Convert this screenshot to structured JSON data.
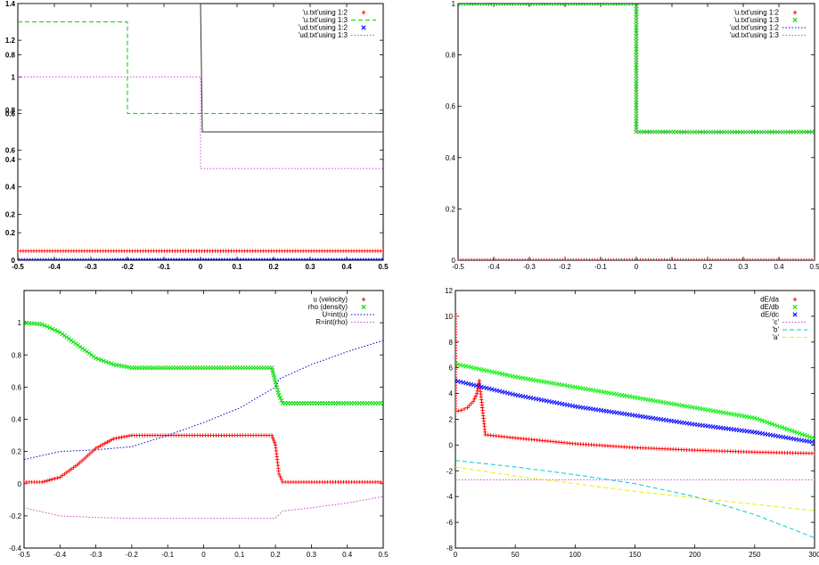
{
  "chart_data": [
    {
      "type": "line",
      "panel": "top-left",
      "xlim": [
        -0.5,
        0.5
      ],
      "ylim": [
        0,
        1.4
      ],
      "x_ticks": [
        "-0.5",
        "-0.4",
        "-0.3",
        "-0.2",
        "-0.1",
        "0",
        "0.1",
        "0.2",
        "0.3",
        "0.4",
        "0.5"
      ],
      "y_tick_labels": [
        {
          "v": 0,
          "t": "0"
        },
        {
          "v": 0.15,
          "t": "0.2"
        },
        {
          "v": 0.25,
          "t": "0.2"
        },
        {
          "v": 0.4,
          "t": "0.4"
        },
        {
          "v": 0.55,
          "t": "0.4"
        },
        {
          "v": 0.6,
          "t": "0.6"
        },
        {
          "v": 0.8,
          "t": "0.6"
        },
        {
          "v": 0.82,
          "t": "0.8"
        },
        {
          "v": 1.0,
          "t": "1"
        },
        {
          "v": 1.12,
          "t": "0.8"
        },
        {
          "v": 1.2,
          "t": "1.2"
        },
        {
          "v": 1.4,
          "t": "1.4"
        }
      ],
      "legend_position": "top-right",
      "series": [
        {
          "name": "'u.txt'using 1:2",
          "color": "#ff0000",
          "style": "points",
          "x": [
            -0.5,
            0.5
          ],
          "y": [
            0.05,
            0.05
          ]
        },
        {
          "name": "'u.txt'using 1:3",
          "color": "#00cc00",
          "style": "dashed",
          "x": [
            -0.5,
            -0.2,
            -0.2,
            0,
            0,
            0.5
          ],
          "y": [
            1.3,
            1.3,
            0.8,
            0.8,
            0.8,
            0.8
          ]
        },
        {
          "name": "'ud.txt'using 1:2",
          "color": "#0000ff",
          "style": "points",
          "x": [
            -0.5,
            0.5
          ],
          "y": [
            0.0,
            0.0
          ]
        },
        {
          "name": "'ud.txt'using 1:3",
          "color": "#cc44cc",
          "style": "dotted",
          "x": [
            -0.5,
            0,
            0,
            0.5
          ],
          "y": [
            1.0,
            1.0,
            0.5,
            0.5
          ]
        },
        {
          "name": "",
          "color": "#333333",
          "style": "line",
          "x": [
            -0.5,
            0,
            0.005,
            0.5
          ],
          "y": [
            1.4,
            1.4,
            0.7,
            0.7
          ]
        }
      ]
    },
    {
      "type": "line",
      "panel": "top-right",
      "xlim": [
        -0.5,
        0.5
      ],
      "ylim": [
        0,
        1
      ],
      "x_ticks": [
        "-0.5",
        "-0.4",
        "-0.3",
        "-0.2",
        "-0.1",
        "0",
        "0.1",
        "0.2",
        "0.3",
        "0.4",
        "0.5"
      ],
      "y_ticks": [
        "0",
        "0.2",
        "0.4",
        "0.6",
        "0.8",
        "1"
      ],
      "legend_position": "top-right",
      "series": [
        {
          "name": "'u.txt'using 1:2",
          "color": "#ff0000",
          "style": "points",
          "x": [
            -0.5,
            0.5
          ],
          "y": [
            0,
            0
          ]
        },
        {
          "name": "'u.txt'using 1:3",
          "color": "#00dd00",
          "style": "points",
          "x": [
            -0.5,
            0,
            0,
            0.5
          ],
          "y": [
            1,
            1,
            0.5,
            0.5
          ]
        },
        {
          "name": "'ud.txt'using 1:2",
          "color": "#0000ff",
          "style": "dotted",
          "x": [
            -0.5,
            0.5
          ],
          "y": [
            0,
            0
          ]
        },
        {
          "name": "'ud.txt'using 1:3",
          "color": "#cc44cc",
          "style": "dotted",
          "x": [
            -0.5,
            0,
            0,
            0.5
          ],
          "y": [
            1,
            1,
            0.5,
            0.5
          ]
        }
      ]
    },
    {
      "type": "line",
      "panel": "bottom-left",
      "xlim": [
        -0.5,
        0.5
      ],
      "ylim": [
        -0.4,
        1.2
      ],
      "x_ticks": [
        "-0.5",
        "-0.4",
        "-0.3",
        "-0.2",
        "-0.1",
        "0",
        "0.1",
        "0.2",
        "0.3",
        "0.4",
        "0.5"
      ],
      "y_ticks": [
        "-0.4",
        "-0.2",
        "0",
        "0.2",
        "0.4",
        "0.6",
        "0.8",
        "1"
      ],
      "legend_position": "top-right",
      "series": [
        {
          "name": "u (velocity)",
          "color": "#ff0000",
          "style": "points",
          "x": [
            -0.5,
            -0.45,
            -0.4,
            -0.35,
            -0.3,
            -0.25,
            -0.2,
            -0.15,
            0.19,
            0.2,
            0.205,
            0.21,
            0.22,
            0.5
          ],
          "y": [
            0.01,
            0.01,
            0.04,
            0.12,
            0.22,
            0.28,
            0.3,
            0.3,
            0.3,
            0.24,
            0.15,
            0.06,
            0.01,
            0.01
          ]
        },
        {
          "name": "rho (density)",
          "color": "#00dd00",
          "style": "points",
          "x": [
            -0.5,
            -0.45,
            -0.4,
            -0.35,
            -0.3,
            -0.25,
            -0.2,
            -0.15,
            0.19,
            0.2,
            0.21,
            0.22,
            0.5
          ],
          "y": [
            1.0,
            0.99,
            0.94,
            0.86,
            0.78,
            0.74,
            0.72,
            0.72,
            0.72,
            0.63,
            0.55,
            0.5,
            0.5
          ]
        },
        {
          "name": "U=int(u)",
          "color": "#0000cc",
          "style": "dotted",
          "x": [
            -0.5,
            -0.4,
            -0.3,
            -0.2,
            -0.1,
            0.0,
            0.1,
            0.2,
            0.21,
            0.3,
            0.4,
            0.5
          ],
          "y": [
            0.15,
            0.2,
            0.21,
            0.23,
            0.3,
            0.38,
            0.47,
            0.6,
            0.65,
            0.74,
            0.82,
            0.89
          ]
        },
        {
          "name": "R=int(rho)",
          "color": "#cc44cc",
          "style": "dotted",
          "x": [
            -0.5,
            -0.4,
            -0.3,
            -0.2,
            -0.1,
            0.0,
            0.1,
            0.2,
            0.22,
            0.3,
            0.4,
            0.5
          ],
          "y": [
            -0.15,
            -0.2,
            -0.21,
            -0.215,
            -0.215,
            -0.215,
            -0.215,
            -0.215,
            -0.17,
            -0.15,
            -0.12,
            -0.08
          ]
        }
      ]
    },
    {
      "type": "line",
      "panel": "bottom-right",
      "xlim": [
        0,
        300
      ],
      "ylim": [
        -8,
        12
      ],
      "x_ticks": [
        "0",
        "50",
        "100",
        "150",
        "200",
        "250",
        "300"
      ],
      "y_ticks": [
        "-8",
        "-6",
        "-4",
        "-2",
        "0",
        "2",
        "4",
        "6",
        "8",
        "10",
        "12"
      ],
      "legend_position": "top-right",
      "series": [
        {
          "name": "dE/da",
          "color": "#ff0000",
          "style": "points",
          "x": [
            0,
            0,
            5,
            10,
            15,
            18,
            20,
            25,
            50,
            100,
            150,
            200,
            250,
            300
          ],
          "y": [
            10.2,
            2.6,
            2.7,
            2.9,
            3.4,
            4.0,
            5.0,
            0.8,
            0.55,
            0.1,
            -0.2,
            -0.4,
            -0.55,
            -0.65
          ]
        },
        {
          "name": "dE/db",
          "color": "#00ee00",
          "style": "points",
          "x": [
            0,
            50,
            100,
            150,
            200,
            250,
            300
          ],
          "y": [
            6.3,
            5.3,
            4.5,
            3.7,
            2.9,
            2.1,
            0.5
          ]
        },
        {
          "name": "dE/dc",
          "color": "#0000ff",
          "style": "points",
          "x": [
            0,
            50,
            100,
            150,
            200,
            250,
            300
          ],
          "y": [
            5.0,
            3.9,
            3.0,
            2.3,
            1.6,
            1.0,
            0.2
          ]
        },
        {
          "name": "'c'",
          "color": "#cc44cc",
          "style": "dotted",
          "x": [
            0,
            300
          ],
          "y": [
            -2.7,
            -2.7
          ]
        },
        {
          "name": "'b'",
          "color": "#00cccc",
          "style": "dashed",
          "x": [
            0,
            50,
            100,
            150,
            200,
            250,
            300
          ],
          "y": [
            -1.2,
            -1.7,
            -2.3,
            -3.0,
            -4.0,
            -5.4,
            -7.2
          ]
        },
        {
          "name": "'a'",
          "color": "#eeee00",
          "style": "dashed",
          "x": [
            0,
            50,
            100,
            150,
            200,
            250,
            300
          ],
          "y": [
            -1.7,
            -2.4,
            -3.0,
            -3.6,
            -4.1,
            -4.6,
            -5.1
          ]
        }
      ]
    }
  ]
}
